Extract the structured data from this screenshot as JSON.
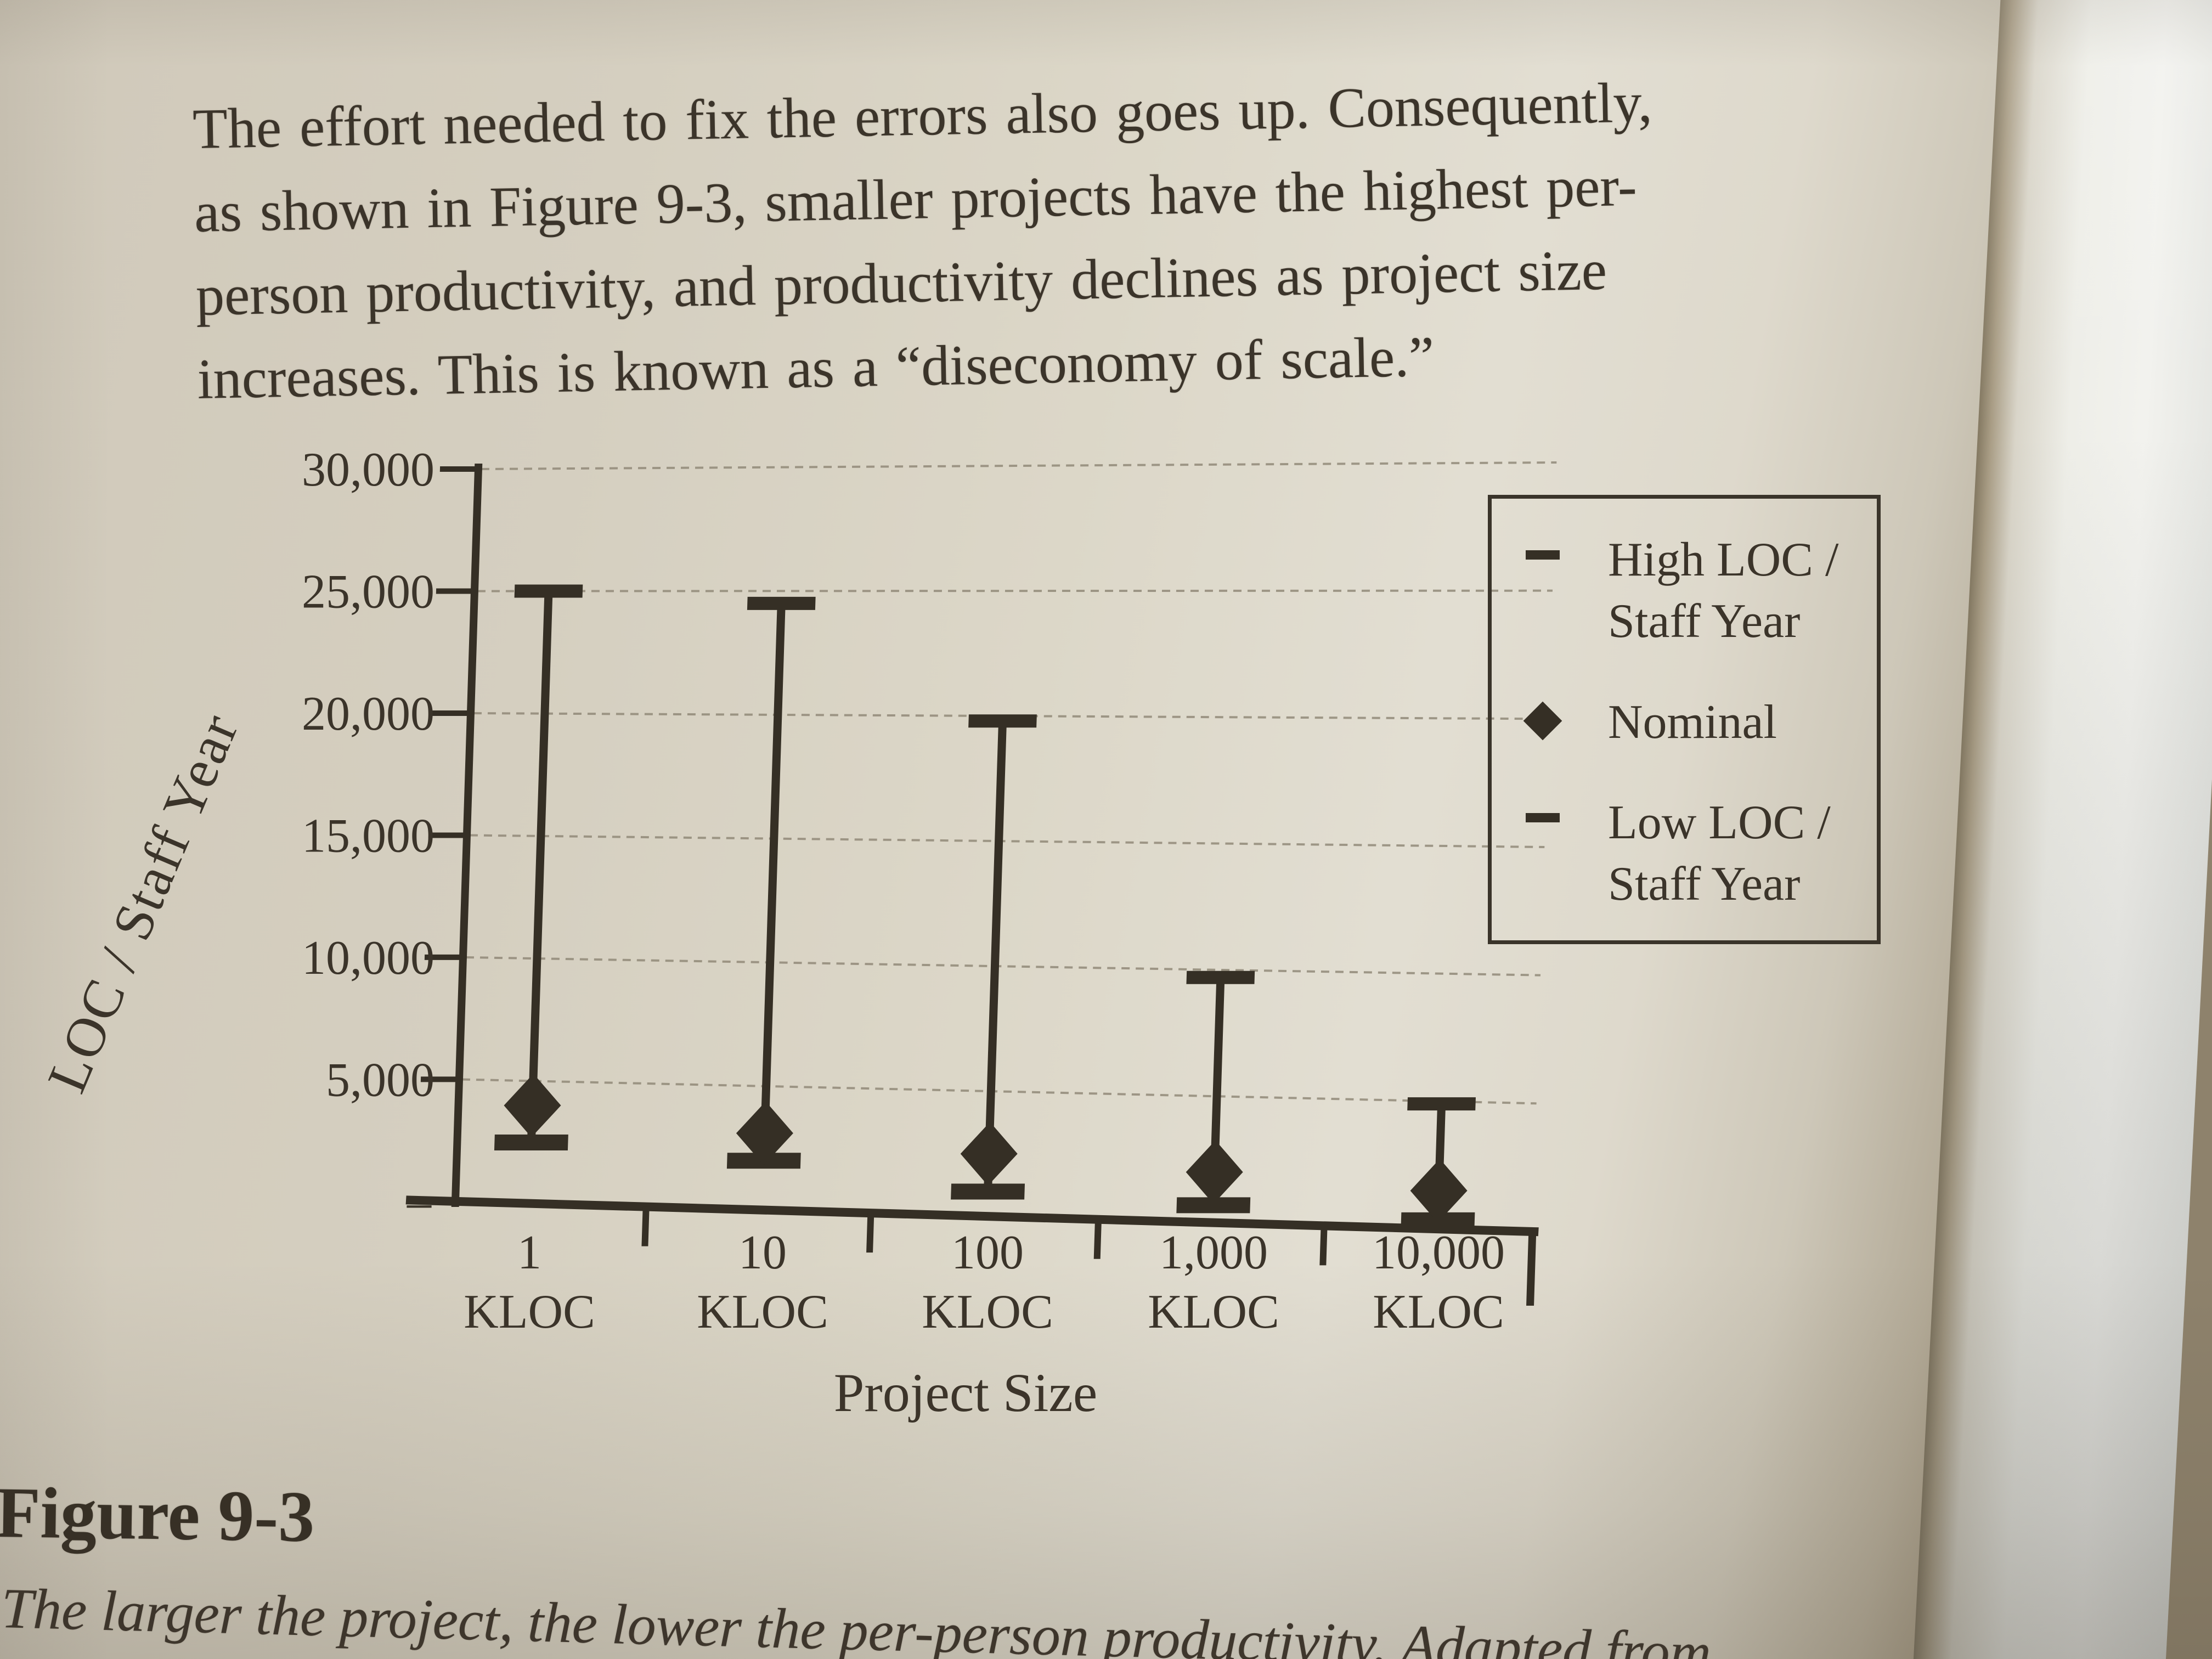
{
  "paragraph": {
    "lines": [
      "The effort needed to fix the errors also goes up. Consequently,",
      "as shown in Figure 9-3, smaller projects have the highest per-",
      "person productivity, and productivity declines as project size",
      "increases. This is known as a “diseconomy of scale.”"
    ]
  },
  "figure": {
    "label": "Figure 9-3",
    "caption": "The larger the project, the lower the per-person productivity. Adapted from"
  },
  "chart_data": {
    "type": "bar",
    "subtype": "hi-lo-range",
    "title": "",
    "xlabel": "Project Size",
    "ylabel": "LOC / Staff Year",
    "categories": [
      "1 KLOC",
      "10 KLOC",
      "100 KLOC",
      "1,000 KLOC",
      "10,000 KLOC"
    ],
    "category_label_lines": [
      [
        "1",
        "KLOC"
      ],
      [
        "10",
        "KLOC"
      ],
      [
        "100",
        "KLOC"
      ],
      [
        "1,000",
        "KLOC"
      ],
      [
        "10,000",
        "KLOC"
      ]
    ],
    "ylim": [
      0,
      30000
    ],
    "grid": true,
    "legend_position": "upper right",
    "y_ticks": [
      {
        "value": 30000,
        "label": "30,000"
      },
      {
        "value": 25000,
        "label": "25,000"
      },
      {
        "value": 20000,
        "label": "20,000"
      },
      {
        "value": 15000,
        "label": "15,000"
      },
      {
        "value": 10000,
        "label": "10,000"
      },
      {
        "value": 5000,
        "label": "5,000"
      },
      {
        "value": 0,
        "label": "–"
      }
    ],
    "series": [
      {
        "name": "High LOC / Staff Year",
        "marker": "dash",
        "values": [
          25000,
          24500,
          19800,
          9700,
          4900
        ]
      },
      {
        "name": "Nominal",
        "marker": "diamond",
        "values": [
          4000,
          3100,
          2500,
          2000,
          1500
        ]
      },
      {
        "name": "Low LOC / Staff Year",
        "marker": "dash",
        "values": [
          2500,
          2000,
          1000,
          700,
          350
        ]
      }
    ],
    "legend": [
      {
        "marker": "dash",
        "lines": [
          "High LOC /",
          "Staff Year"
        ]
      },
      {
        "marker": "diamond",
        "lines": [
          "Nominal"
        ]
      },
      {
        "marker": "dash",
        "lines": [
          "Low LOC /",
          "Staff Year"
        ]
      }
    ]
  },
  "colors": {
    "ink": "#352f25",
    "text": "#3b342a",
    "grid_line": "#8d8574",
    "paper": "#d8d2c3",
    "next_page": "#f1f1ed"
  }
}
